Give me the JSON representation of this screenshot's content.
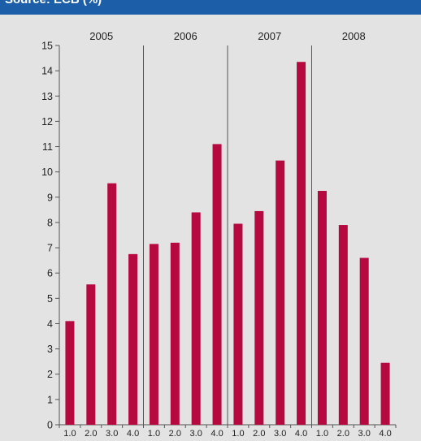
{
  "header": {
    "title": "Source: ECB (%)"
  },
  "colors": {
    "bar": "#b5093f",
    "background": "#e3e3e3",
    "header": "#1c5fa8",
    "axis": "#555555"
  },
  "chart_data": {
    "type": "bar",
    "title": "",
    "xlabel": "",
    "ylabel": "",
    "ylim": [
      0,
      15
    ],
    "yticks": [
      0,
      1,
      2,
      3,
      4,
      5,
      6,
      7,
      8,
      9,
      10,
      11,
      12,
      13,
      14,
      15
    ],
    "grid": false,
    "groups": [
      {
        "label": "2005",
        "categories": [
          "1.0",
          "2.0",
          "3.0",
          "4.0"
        ],
        "values": [
          4.1,
          5.55,
          9.55,
          6.75
        ]
      },
      {
        "label": "2006",
        "categories": [
          "1.0",
          "2.0",
          "3.0",
          "4.0"
        ],
        "values": [
          7.15,
          7.2,
          8.4,
          11.1
        ]
      },
      {
        "label": "2007",
        "categories": [
          "1.0",
          "2.0",
          "3.0",
          "4.0"
        ],
        "values": [
          7.95,
          8.45,
          10.45,
          14.35
        ]
      },
      {
        "label": "2008",
        "categories": [
          "1.0",
          "2.0",
          "3.0",
          "4.0"
        ],
        "values": [
          9.25,
          7.9,
          6.6,
          2.45
        ]
      }
    ]
  }
}
